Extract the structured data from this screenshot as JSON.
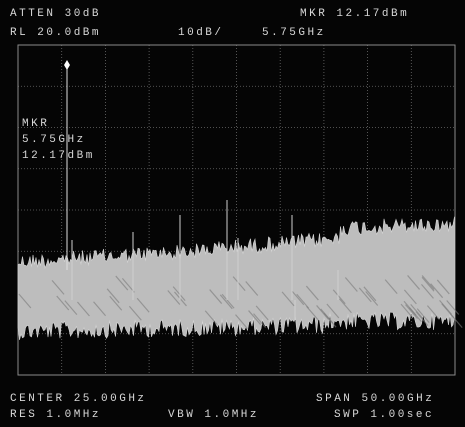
{
  "header": {
    "attenuation": "ATTEN 30dB",
    "marker_readout": "MKR 12.17dBm",
    "ref_level": "RL 20.0dBm",
    "scale": "10dB/",
    "marker_freq": "5.75GHz"
  },
  "marker_box": {
    "label": "MKR",
    "frequency": "5.75GHz",
    "amplitude": "12.17dBm"
  },
  "footer": {
    "center": "CENTER 25.00GHz",
    "span": "SPAN 50.00GHz",
    "rbw": "RES 1.0MHz",
    "vbw": "VBW 1.0MHz",
    "sweep": "SWP 1.00sec"
  }
}
